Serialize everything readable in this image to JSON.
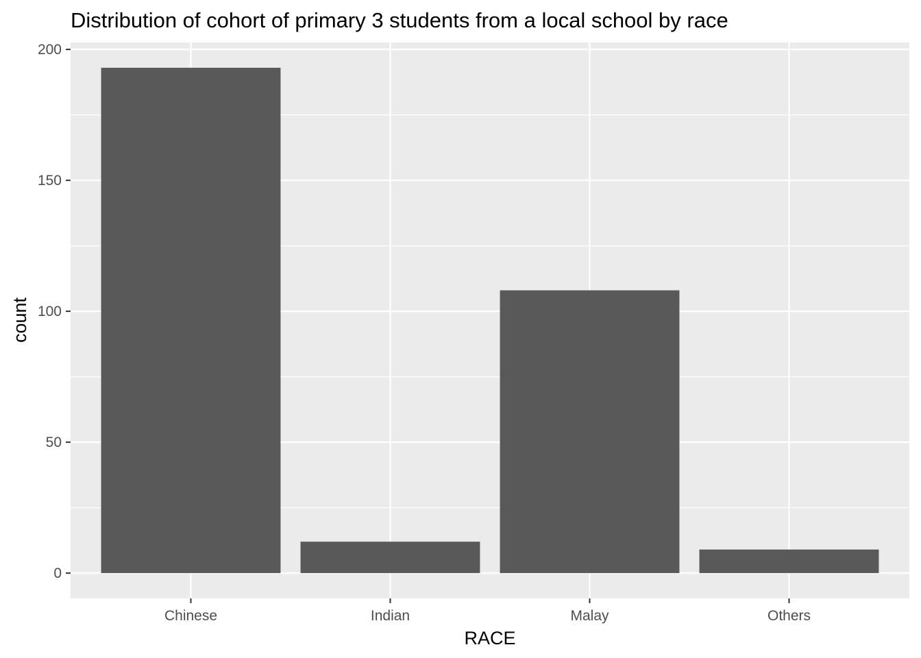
{
  "chart_data": {
    "type": "bar",
    "title": "Distribution of cohort of primary 3 students from a local school by race",
    "xlabel": "RACE",
    "ylabel": "count",
    "categories": [
      "Chinese",
      "Indian",
      "Malay",
      "Others"
    ],
    "values": [
      193,
      12,
      108,
      9
    ],
    "ylim": [
      -9.65,
      202.65
    ],
    "yticks": [
      0,
      50,
      100,
      150,
      200
    ],
    "ytick_labels": [
      "0",
      "50",
      "100",
      "150",
      "200"
    ],
    "grid": true,
    "legend": "none",
    "colors": {
      "bar": "#595959",
      "panel": "#ebebeb",
      "grid_major": "#ffffff",
      "tick": "#333333"
    }
  }
}
